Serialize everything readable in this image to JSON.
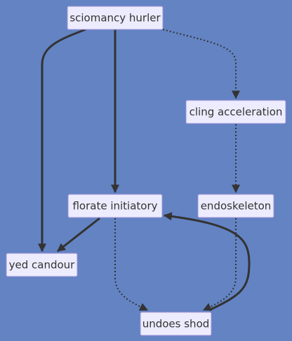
{
  "nodes": {
    "sciomancy": "sciomancy hurler",
    "cling": "cling acceleration",
    "florate": "florate initiatory",
    "endoskeleton": "endoskeleton",
    "yed": "yed candour",
    "undoes": "undoes shod"
  },
  "edges": [
    {
      "from": "sciomancy hurler",
      "to": "yed candour",
      "style": "solid"
    },
    {
      "from": "sciomancy hurler",
      "to": "florate initiatory",
      "style": "solid"
    },
    {
      "from": "sciomancy hurler",
      "to": "cling acceleration",
      "style": "dotted"
    },
    {
      "from": "cling acceleration",
      "to": "endoskeleton",
      "style": "dotted"
    },
    {
      "from": "florate initiatory",
      "to": "yed candour",
      "style": "solid"
    },
    {
      "from": "florate initiatory",
      "to": "undoes shod",
      "style": "dotted"
    },
    {
      "from": "endoskeleton",
      "to": "undoes shod",
      "style": "dotted"
    },
    {
      "from": "undoes shod",
      "to": "florate initiatory",
      "style": "solid"
    }
  ],
  "colors": {
    "background": "#6383c3",
    "node_fill": "#ececfe",
    "node_border": "#9f92d8",
    "edge": "#333333"
  }
}
